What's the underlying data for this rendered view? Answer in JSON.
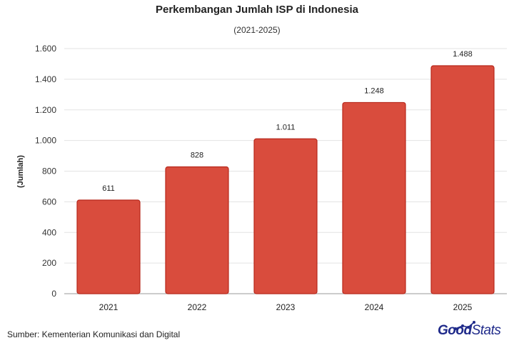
{
  "title": "Perkembangan Jumlah ISP di Indonesia",
  "subtitle": "(2021-2025)",
  "source": "Sumber: Kementerian Komunikasi dan Digital",
  "logo": {
    "part1": "Good",
    "part2": "Stats"
  },
  "colors": {
    "bar": "#d94c3d",
    "bar_edge": "#b8281c",
    "logo": "#1f2a8a"
  },
  "chart_data": {
    "type": "bar",
    "title": "Perkembangan Jumlah ISP di Indonesia",
    "subtitle": "(2021-2025)",
    "xlabel": "",
    "ylabel": "(Jumlah)",
    "categories": [
      "2021",
      "2022",
      "2023",
      "2024",
      "2025"
    ],
    "values": [
      611,
      828,
      1011,
      1248,
      1488
    ],
    "value_labels": [
      "611",
      "828",
      "1.011",
      "1.248",
      "1.488"
    ],
    "ylim": [
      0,
      1600
    ],
    "yticks": [
      0,
      200,
      400,
      600,
      800,
      1000,
      1200,
      1400,
      1600
    ],
    "ytick_labels": [
      "0",
      "200",
      "400",
      "600",
      "800",
      "1.000",
      "1.200",
      "1.400",
      "1.600"
    ],
    "grid": true,
    "legend": "none"
  }
}
